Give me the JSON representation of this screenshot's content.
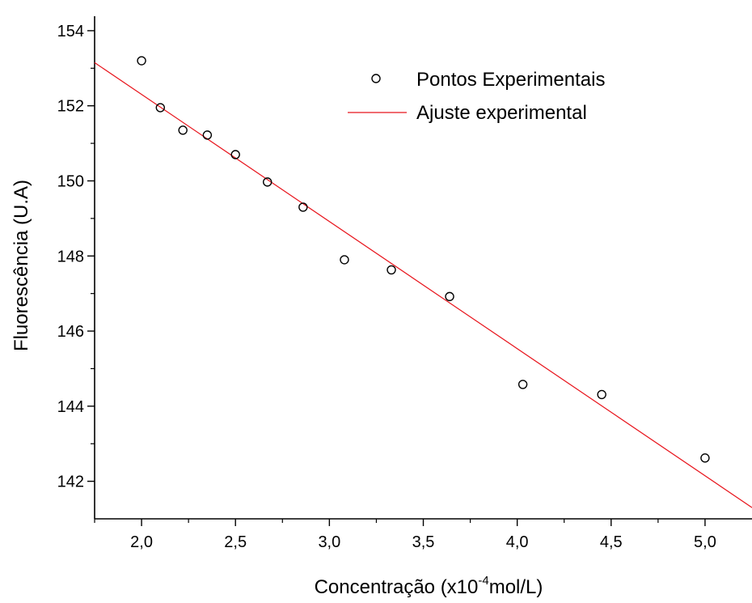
{
  "chart_data": {
    "type": "scatter",
    "xlabel_main": "Concentração (x10",
    "xlabel_sup": "-4",
    "xlabel_tail": "mol/L)",
    "ylabel": "Fluorescência (U.A)",
    "xlim": [
      1.75,
      5.25
    ],
    "ylim": [
      141.0,
      154.3
    ],
    "x_ticks": [
      2.0,
      2.5,
      3.0,
      3.5,
      4.0,
      4.5,
      5.0
    ],
    "x_tick_labels": [
      "2,0",
      "2,5",
      "3,0",
      "3,5",
      "4,0",
      "4,5",
      "5,0"
    ],
    "y_ticks": [
      142,
      144,
      146,
      148,
      150,
      152,
      154
    ],
    "y_tick_labels": [
      "142",
      "144",
      "146",
      "148",
      "150",
      "152",
      "154"
    ],
    "grid": false,
    "legend_position": "top-right",
    "series": [
      {
        "name": "Pontos Experimentais",
        "kind": "scatter",
        "marker": "open-circle",
        "color": "#000000",
        "x": [
          2.0,
          2.1,
          2.22,
          2.35,
          2.5,
          2.67,
          2.86,
          3.08,
          3.33,
          3.64,
          4.03,
          4.45,
          5.0
        ],
        "y": [
          153.2,
          151.95,
          151.35,
          151.22,
          150.7,
          149.97,
          149.3,
          147.9,
          147.63,
          146.92,
          144.58,
          144.31,
          142.62
        ]
      },
      {
        "name": "Ajuste experimental",
        "kind": "line",
        "color": "#e8141c",
        "x": [
          1.75,
          5.25
        ],
        "y": [
          153.15,
          141.3
        ]
      }
    ]
  }
}
